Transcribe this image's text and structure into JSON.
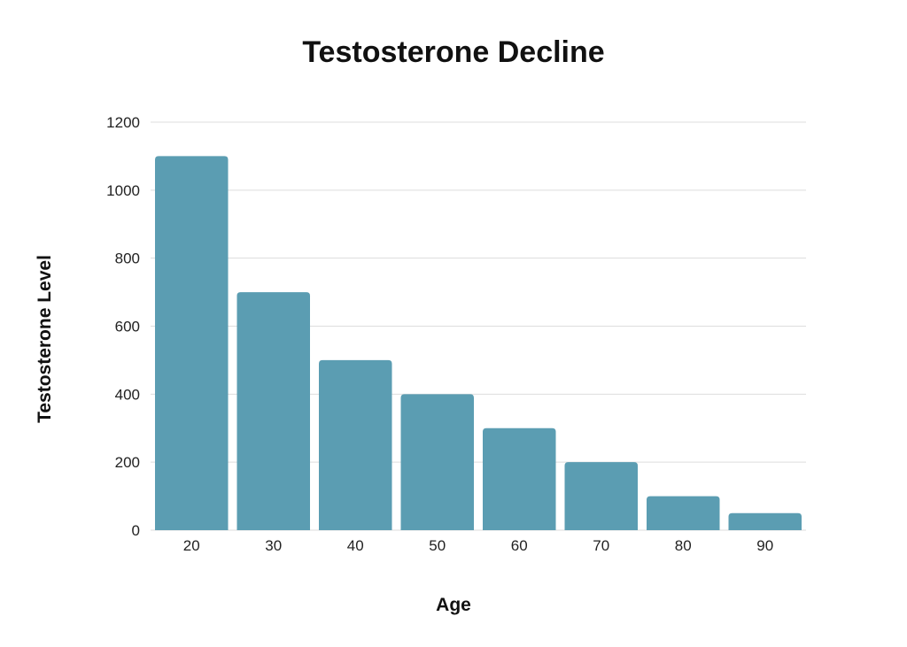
{
  "chart_data": {
    "type": "bar",
    "title": "Testosterone Decline",
    "xlabel": "Age",
    "ylabel": "Testosterone Level",
    "categories": [
      "20",
      "30",
      "40",
      "50",
      "60",
      "70",
      "80",
      "90"
    ],
    "values": [
      1100,
      700,
      500,
      400,
      300,
      200,
      100,
      50
    ],
    "ylim": [
      0,
      1200
    ],
    "yticks": [
      "0",
      "200",
      "400",
      "600",
      "800",
      "1000",
      "1200"
    ],
    "grid": true,
    "bar_color": "#5b9db2"
  }
}
